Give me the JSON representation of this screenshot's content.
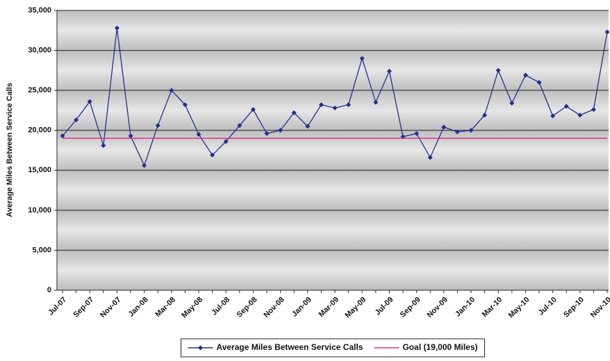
{
  "chart_data": {
    "type": "line",
    "y_label": "Average Miles Between Service Calls",
    "categories": [
      "Jul-07",
      null,
      "Sep-07",
      null,
      "Nov-07",
      null,
      "Jan-08",
      null,
      "Mar-08",
      null,
      "May-08",
      null,
      "Jul-08",
      null,
      "Sep-08",
      null,
      "Nov-08",
      null,
      "Jan-09",
      null,
      "Mar-09",
      null,
      "May-09",
      null,
      "Jul-09",
      null,
      "Sep-09",
      null,
      "Nov-09",
      null,
      "Jan-10",
      null,
      "Mar-10",
      null,
      "May-10",
      null,
      "Jul-10",
      null,
      "Sep-10",
      null,
      "Nov-10"
    ],
    "series": [
      {
        "name": "Average Miles Between Service Calls",
        "color": "#1f2f8f",
        "marker": "diamond",
        "values": [
          19300,
          21300,
          23600,
          18100,
          32800,
          19300,
          15600,
          20600,
          25000,
          23200,
          19500,
          16900,
          18600,
          20600,
          22600,
          19600,
          20000,
          22200,
          20500,
          23200,
          22800,
          23200,
          29000,
          23500,
          27400,
          19200,
          19600,
          16600,
          20400,
          19800,
          20000,
          21900,
          27500,
          23400,
          26900,
          26000,
          21800,
          23000,
          21900,
          22600,
          32300
        ]
      },
      {
        "name": "Goal (19,000 Miles)",
        "color": "#e0308a",
        "marker": "none",
        "values": [
          19000,
          19000,
          19000,
          19000,
          19000,
          19000,
          19000,
          19000,
          19000,
          19000,
          19000,
          19000,
          19000,
          19000,
          19000,
          19000,
          19000,
          19000,
          19000,
          19000,
          19000,
          19000,
          19000,
          19000,
          19000,
          19000,
          19000,
          19000,
          19000,
          19000,
          19000,
          19000,
          19000,
          19000,
          19000,
          19000,
          19000,
          19000,
          19000,
          19000,
          19000
        ]
      }
    ],
    "ylim": [
      0,
      35000
    ],
    "yticks": [
      0,
      {
        "value": 5000,
        "label": "5,000"
      },
      {
        "value": 10000,
        "label": "10,000"
      },
      {
        "value": 15000,
        "label": "15,000"
      },
      {
        "value": 20000,
        "label": "20,000"
      },
      {
        "value": 25000,
        "label": "25,000"
      },
      {
        "value": 30000,
        "label": "30,000"
      },
      {
        "value": 35000,
        "label": "35,000"
      }
    ],
    "grid": true,
    "legend": "bottom"
  }
}
